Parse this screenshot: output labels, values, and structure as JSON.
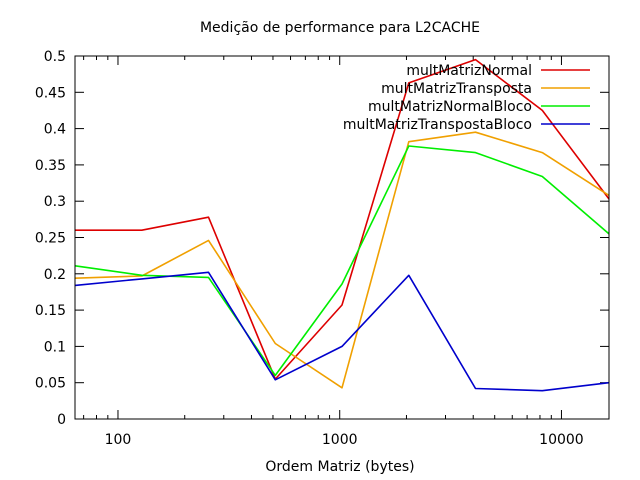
{
  "chart_data": {
    "type": "line",
    "title": "Medição de performance para L2CACHE",
    "xlabel": "Ordem Matriz (bytes)",
    "ylabel": "",
    "xscale": "log",
    "xlim": [
      64,
      16384
    ],
    "ylim": [
      0,
      0.5
    ],
    "xticks": [
      100,
      1000,
      10000
    ],
    "xtick_labels": [
      "100",
      "1000",
      "10000"
    ],
    "yticks": [
      0,
      0.05,
      0.1,
      0.15,
      0.2,
      0.25,
      0.3,
      0.35,
      0.4,
      0.45,
      0.5
    ],
    "ytick_labels": [
      "0",
      "0.05",
      "0.1",
      "0.15",
      "0.2",
      "0.25",
      "0.3",
      "0.35",
      "0.4",
      "0.45",
      "0.5"
    ],
    "grid": false,
    "legend_position": "top-right",
    "x": [
      64,
      128,
      256,
      512,
      1024,
      2048,
      4096,
      8192,
      16384
    ],
    "series": [
      {
        "name": "multMatrizNormal",
        "color": "#dd0000",
        "values": [
          0.26,
          0.26,
          0.278,
          0.055,
          0.157,
          0.463,
          0.495,
          0.425,
          0.303
        ]
      },
      {
        "name": "multMatrizTransposta",
        "color": "#f0a000",
        "values": [
          0.194,
          0.197,
          0.246,
          0.104,
          0.043,
          0.382,
          0.395,
          0.367,
          0.308
        ]
      },
      {
        "name": "multMatrizNormalBloco",
        "color": "#00ee00",
        "values": [
          0.211,
          0.198,
          0.195,
          0.06,
          0.186,
          0.376,
          0.367,
          0.334,
          0.255
        ]
      },
      {
        "name": "multMatrizTranspostaBloco",
        "color": "#0000cc",
        "values": [
          0.184,
          0.193,
          0.202,
          0.054,
          0.1,
          0.198,
          0.042,
          0.039,
          0.05
        ]
      }
    ]
  }
}
